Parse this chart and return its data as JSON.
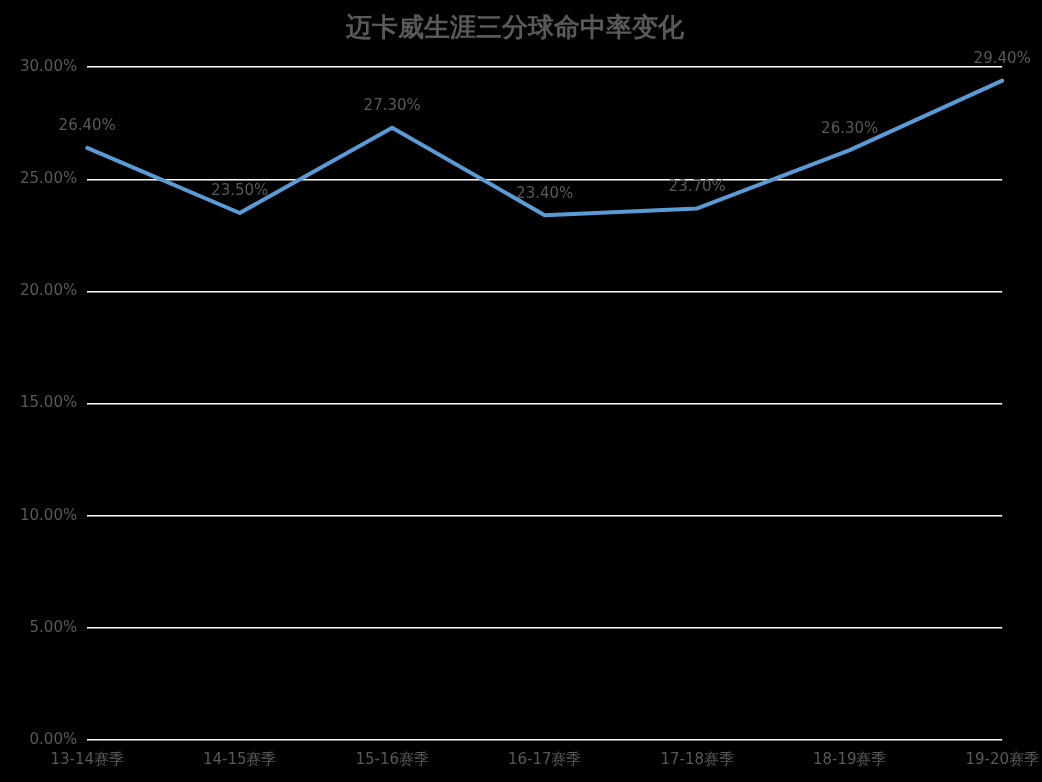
{
  "chart_data": {
    "type": "line",
    "title": "迈卡威生涯三分球命中率变化",
    "categories": [
      "13-14赛季",
      "14-15赛季",
      "15-16赛季",
      "16-17赛季",
      "17-18赛季",
      "18-19赛季",
      "19-20赛季"
    ],
    "series": [
      {
        "color": "#5b9bd5",
        "values": [
          26.4,
          23.5,
          27.3,
          23.4,
          23.7,
          26.3,
          29.4
        ],
        "value_labels": [
          "26.40%",
          "23.50%",
          "27.30%",
          "23.40%",
          "23.70%",
          "26.30%",
          "29.40%"
        ]
      }
    ],
    "ylim": [
      0,
      30
    ],
    "yticks": [
      {
        "value": 0,
        "label": "0.00%"
      },
      {
        "value": 5,
        "label": "5.00%"
      },
      {
        "value": 10,
        "label": "10.00%"
      },
      {
        "value": 15,
        "label": "15.00%"
      },
      {
        "value": 20,
        "label": "20.00%"
      },
      {
        "value": 25,
        "label": "25.00%"
      },
      {
        "value": 30,
        "label": "30.00%"
      }
    ],
    "grid": "y",
    "legend": false,
    "marker": "none",
    "line_style": "solid"
  }
}
